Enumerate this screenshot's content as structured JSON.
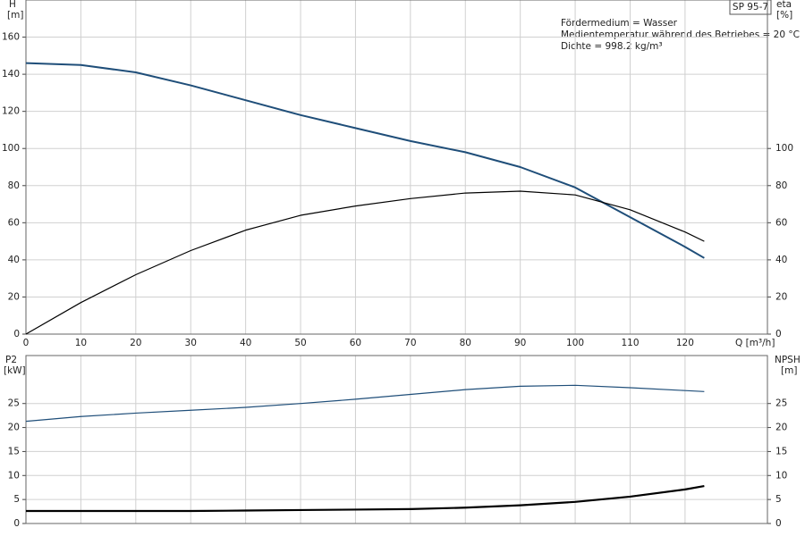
{
  "chart_data": [
    {
      "type": "line",
      "info_box": "SP 95-7",
      "annotations": [
        "Fördermedium = Wasser",
        "Medientemperatur während des Betriebes = 20 °C",
        "Dichte = 998.2 kg/m³"
      ],
      "y_label": "H",
      "y_unit": "[m]",
      "y2_label": "eta",
      "y2_unit": "[%]",
      "x_label": "Q [m³/h]",
      "x": [
        0,
        10,
        20,
        30,
        40,
        50,
        60,
        70,
        80,
        90,
        100,
        110,
        120,
        123.5
      ],
      "series": [
        {
          "name": "H",
          "color": "#1f4e79",
          "width": 2,
          "values": [
            146,
            145,
            141,
            134,
            126,
            118,
            111,
            104,
            98,
            90,
            79,
            63,
            47,
            41
          ]
        },
        {
          "name": "eta",
          "color": "#000000",
          "width": 1.2,
          "axis": "y2",
          "values": [
            0,
            17,
            32,
            45,
            56,
            64,
            69,
            73,
            76,
            77,
            75,
            67,
            55,
            50
          ]
        }
      ],
      "xlim": [
        0,
        135
      ],
      "xticks": [
        0,
        10,
        20,
        30,
        40,
        50,
        60,
        70,
        80,
        90,
        100,
        110,
        120
      ],
      "ylim": [
        0,
        180
      ],
      "yticks": [
        0,
        20,
        40,
        60,
        80,
        100,
        120,
        140,
        160
      ],
      "y2lim": [
        0,
        180
      ],
      "y2ticks": [
        0,
        20,
        40,
        60,
        80,
        100
      ],
      "grid": true
    },
    {
      "type": "line",
      "y_label": "P2",
      "y_unit": "[kW]",
      "y2_label": "NPSH",
      "y2_unit": "[m]",
      "x": [
        0,
        10,
        20,
        30,
        40,
        50,
        60,
        70,
        80,
        90,
        100,
        110,
        120,
        123.5
      ],
      "series": [
        {
          "name": "P2",
          "color": "#1f4e79",
          "width": 1.2,
          "values": [
            21.3,
            22.3,
            23,
            23.6,
            24.2,
            25,
            25.9,
            26.9,
            27.9,
            28.6,
            28.8,
            28.3,
            27.7,
            27.5
          ]
        },
        {
          "name": "NPSH",
          "color": "#000000",
          "width": 2.2,
          "axis": "y2",
          "values": [
            2.6,
            2.6,
            2.6,
            2.6,
            2.7,
            2.8,
            2.9,
            3.0,
            3.3,
            3.8,
            4.5,
            5.6,
            7.1,
            7.8
          ]
        }
      ],
      "xlim": [
        0,
        135
      ],
      "ylim": [
        0,
        35
      ],
      "yticks": [
        0,
        5,
        10,
        15,
        20,
        25
      ],
      "y2lim": [
        0,
        35
      ],
      "y2ticks": [
        0,
        5,
        10,
        15,
        20,
        25
      ],
      "grid": true
    }
  ]
}
